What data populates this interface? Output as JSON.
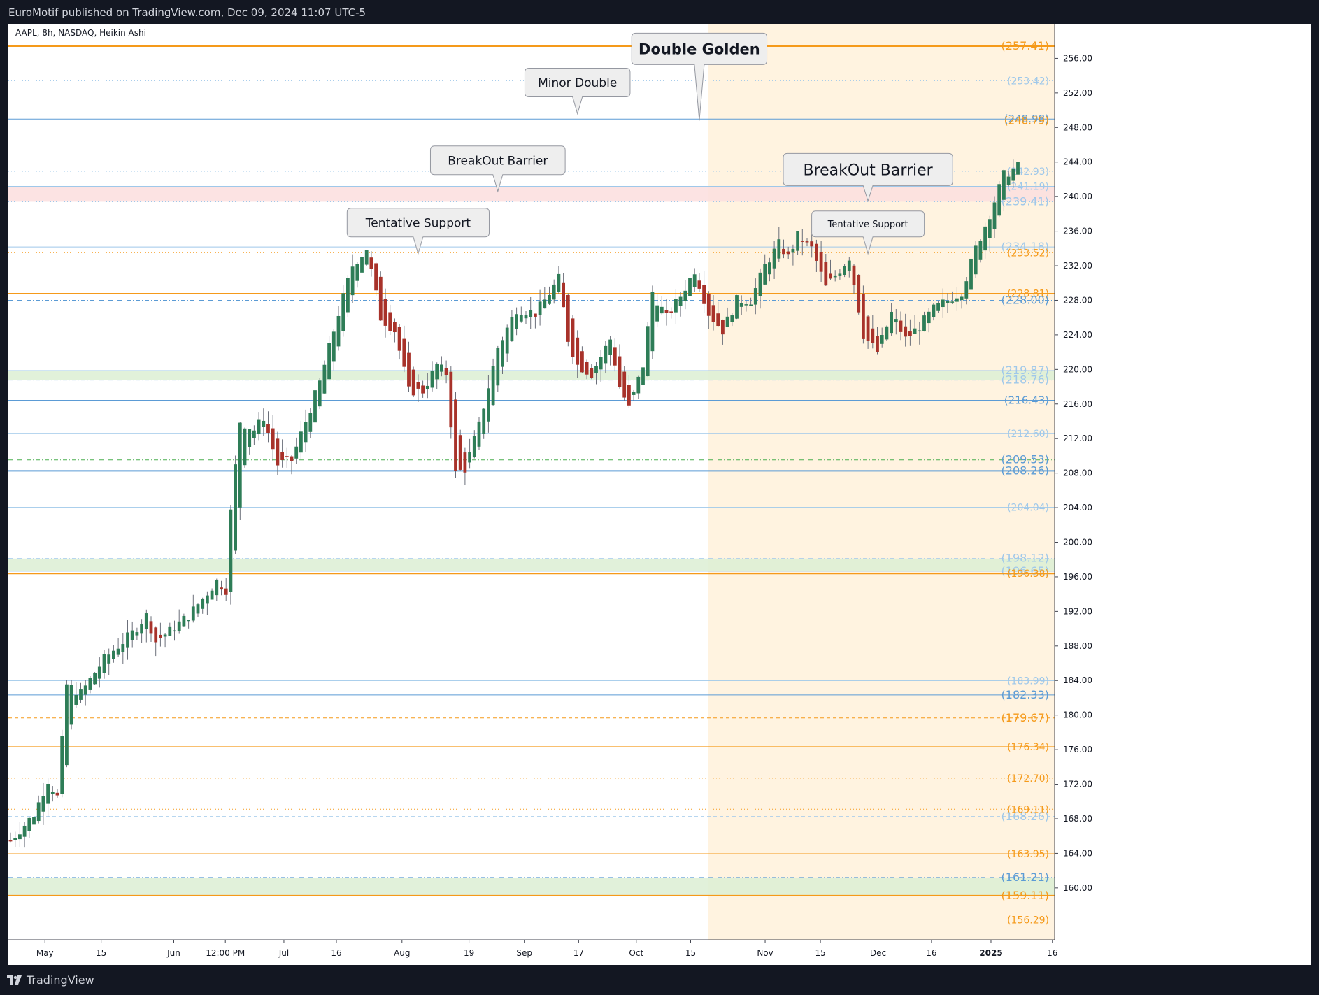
{
  "header": {
    "published": "EuroMotif published on TradingView.com, Dec 09, 2024 11:07 UTC-5",
    "symbol_legend": "AAPL, 8h, NASDAQ, Heikin Ashi"
  },
  "footer": {
    "brand": "TradingView",
    "logo_icon": "tradingview-logo-icon"
  },
  "colors": {
    "up": "#2e7d57",
    "down": "#a8322a",
    "orange": "#f59a1a",
    "blue": "#5b9bd5",
    "light_blue": "#9fc8ea",
    "green_zone": "#dcefd3",
    "red_zone": "#fbdede",
    "highlight": "#fff3e0"
  },
  "chart_data": {
    "type": "candlestick",
    "style": "Heikin Ashi",
    "ylim": [
      154,
      260
    ],
    "y_ticks": [
      "160.00",
      "164.00",
      "168.00",
      "172.00",
      "176.00",
      "180.00",
      "184.00",
      "188.00",
      "192.00",
      "196.00",
      "200.00",
      "204.00",
      "208.00",
      "212.00",
      "216.00",
      "220.00",
      "224.00",
      "228.00",
      "232.00",
      "236.00",
      "240.00",
      "244.00",
      "248.00",
      "252.00",
      "256.00"
    ],
    "x_ticks": [
      "May",
      "15",
      "Jun",
      "12:00 PM",
      "Jul",
      "16",
      "Aug",
      "19",
      "Sep",
      "17",
      "Oct",
      "15",
      "Nov",
      "15",
      "Dec",
      "16",
      "2025",
      "16"
    ],
    "grid": false,
    "highlight_period": {
      "from": "Oct 21",
      "to": "end"
    },
    "anchors": [
      {
        "t": 0,
        "p": 165.5
      },
      {
        "t": 5,
        "p": 168.5
      },
      {
        "t": 8,
        "p": 172.5
      },
      {
        "t": 10,
        "p": 170.5
      },
      {
        "t": 12,
        "p": 183.5
      },
      {
        "t": 15,
        "p": 182.5
      },
      {
        "t": 20,
        "p": 186.5
      },
      {
        "t": 26,
        "p": 189.5
      },
      {
        "t": 29,
        "p": 191.5
      },
      {
        "t": 31,
        "p": 188.5
      },
      {
        "t": 38,
        "p": 191.5
      },
      {
        "t": 44,
        "p": 195.5
      },
      {
        "t": 46,
        "p": 194.5
      },
      {
        "t": 47,
        "p": 203.5
      },
      {
        "t": 49,
        "p": 214.0
      },
      {
        "t": 52,
        "p": 213.0
      },
      {
        "t": 54,
        "p": 214.5
      },
      {
        "t": 57,
        "p": 209.0
      },
      {
        "t": 60,
        "p": 209.5
      },
      {
        "t": 62,
        "p": 212.5
      },
      {
        "t": 66,
        "p": 218.5
      },
      {
        "t": 70,
        "p": 226.5
      },
      {
        "t": 73,
        "p": 232.0
      },
      {
        "t": 76,
        "p": 234.0
      },
      {
        "t": 79,
        "p": 226.0
      },
      {
        "t": 82,
        "p": 224.5
      },
      {
        "t": 85,
        "p": 217.5
      },
      {
        "t": 88,
        "p": 217.5
      },
      {
        "t": 91,
        "p": 220.5
      },
      {
        "t": 93,
        "p": 219.5
      },
      {
        "t": 95,
        "p": 208.0
      },
      {
        "t": 97,
        "p": 208.5
      },
      {
        "t": 100,
        "p": 213.5
      },
      {
        "t": 104,
        "p": 222.5
      },
      {
        "t": 108,
        "p": 227.0
      },
      {
        "t": 112,
        "p": 226.5
      },
      {
        "t": 114,
        "p": 228.0
      },
      {
        "t": 117,
        "p": 230.5
      },
      {
        "t": 119,
        "p": 223.5
      },
      {
        "t": 121,
        "p": 220.5
      },
      {
        "t": 124,
        "p": 219.5
      },
      {
        "t": 128,
        "p": 223.5
      },
      {
        "t": 130,
        "p": 218.0
      },
      {
        "t": 132,
        "p": 215.5
      },
      {
        "t": 135,
        "p": 220.5
      },
      {
        "t": 137,
        "p": 229.0
      },
      {
        "t": 140,
        "p": 226.0
      },
      {
        "t": 143,
        "p": 228.5
      },
      {
        "t": 146,
        "p": 231.5
      },
      {
        "t": 149,
        "p": 226.5
      },
      {
        "t": 152,
        "p": 224.5
      },
      {
        "t": 155,
        "p": 228.0
      },
      {
        "t": 158,
        "p": 228.0
      },
      {
        "t": 161,
        "p": 232.0
      },
      {
        "t": 164,
        "p": 234.5
      },
      {
        "t": 166,
        "p": 233.0
      },
      {
        "t": 168,
        "p": 235.5
      },
      {
        "t": 171,
        "p": 234.0
      },
      {
        "t": 174,
        "p": 229.5
      },
      {
        "t": 177,
        "p": 231.5
      },
      {
        "t": 179,
        "p": 233.0
      },
      {
        "t": 182,
        "p": 224.0
      },
      {
        "t": 185,
        "p": 222.0
      },
      {
        "t": 188,
        "p": 226.5
      },
      {
        "t": 191,
        "p": 223.5
      },
      {
        "t": 194,
        "p": 225.0
      },
      {
        "t": 197,
        "p": 227.0
      },
      {
        "t": 200,
        "p": 228.0
      },
      {
        "t": 203,
        "p": 229.0
      },
      {
        "t": 206,
        "p": 234.0
      },
      {
        "t": 209,
        "p": 238.0
      },
      {
        "t": 212,
        "p": 242.5
      },
      {
        "t": 215,
        "p": 243.5
      }
    ],
    "price_labels": [
      {
        "value": "(257.41)",
        "color": "#f59a1a",
        "size": 16,
        "style": "solid",
        "weight": 2
      },
      {
        "value": "(253.42)",
        "color": "#9fc8ea",
        "size": 14,
        "style": "dotted",
        "weight": 1
      },
      {
        "value": "(248.98)",
        "color": "#5b9bd5",
        "size": 15,
        "style": "solid",
        "weight": 1
      },
      {
        "value": "(248.79)",
        "color": "#f59a1a",
        "size": 15,
        "style": "none",
        "weight": 1
      },
      {
        "value": "(242.93)",
        "color": "#9fc8ea",
        "size": 14,
        "style": "dotted",
        "weight": 1
      },
      {
        "value": "(241.19)",
        "color": "#9fc8ea",
        "size": 14,
        "style": "solid",
        "weight": 1
      },
      {
        "value": "(239.41)",
        "color": "#9fc8ea",
        "size": 16,
        "style": "dotted",
        "weight": 1
      },
      {
        "value": "(234.18)",
        "color": "#9fc8ea",
        "size": 16,
        "style": "solid",
        "weight": 1
      },
      {
        "value": "(233.52)",
        "color": "#f59a1a",
        "size": 14,
        "style": "dotted",
        "weight": 1
      },
      {
        "value": "(228.81)",
        "color": "#f59a1a",
        "size": 14,
        "style": "solid",
        "weight": 1
      },
      {
        "value": "(228.00)",
        "color": "#5b9bd5",
        "size": 16,
        "style": "dashdot",
        "weight": 1
      },
      {
        "value": "(219.87)",
        "color": "#9fc8ea",
        "size": 16,
        "style": "solid",
        "weight": 1
      },
      {
        "value": "(218.76)",
        "color": "#9fc8ea",
        "size": 16,
        "style": "dashdot",
        "weight": 1
      },
      {
        "value": "(216.43)",
        "color": "#5b9bd5",
        "size": 15,
        "style": "solid",
        "weight": 1
      },
      {
        "value": "(212.60)",
        "color": "#9fc8ea",
        "size": 14,
        "style": "solid",
        "weight": 1
      },
      {
        "value": "(209.53)",
        "color": "#5b9bd5",
        "size": 16,
        "style": "dashdot-green",
        "weight": 1
      },
      {
        "value": "(208.26)",
        "color": "#5b9bd5",
        "size": 16,
        "style": "solid",
        "weight": 2
      },
      {
        "value": "(204.04)",
        "color": "#9fc8ea",
        "size": 14,
        "style": "solid",
        "weight": 1
      },
      {
        "value": "(198.12)",
        "color": "#9fc8ea",
        "size": 16,
        "style": "dashdot",
        "weight": 1
      },
      {
        "value": "(196.65)",
        "color": "#9fc8ea",
        "size": 16,
        "style": "solid",
        "weight": 1
      },
      {
        "value": "(196.38)",
        "color": "#f59a1a",
        "size": 14,
        "style": "solid",
        "weight": 2
      },
      {
        "value": "(183.99)",
        "color": "#9fc8ea",
        "size": 14,
        "style": "solid",
        "weight": 1
      },
      {
        "value": "(182.33)",
        "color": "#5b9bd5",
        "size": 16,
        "style": "solid",
        "weight": 1
      },
      {
        "value": "(179.67)",
        "color": "#f59a1a",
        "size": 16,
        "style": "dashed",
        "weight": 1
      },
      {
        "value": "(176.34)",
        "color": "#f59a1a",
        "size": 14,
        "style": "solid",
        "weight": 1
      },
      {
        "value": "(172.70)",
        "color": "#f59a1a",
        "size": 14,
        "style": "dotted",
        "weight": 1
      },
      {
        "value": "(169.11)",
        "color": "#f59a1a",
        "size": 14,
        "style": "dotted",
        "weight": 1
      },
      {
        "value": "(168.26)",
        "color": "#9fc8ea",
        "size": 16,
        "style": "dashed",
        "weight": 1
      },
      {
        "value": "(163.95)",
        "color": "#f59a1a",
        "size": 14,
        "style": "solid",
        "weight": 1
      },
      {
        "value": "(161.21)",
        "color": "#5b9bd5",
        "size": 16,
        "style": "dashdot",
        "weight": 1
      },
      {
        "value": "(159.11)",
        "color": "#f59a1a",
        "size": 16,
        "style": "solid",
        "weight": 2
      },
      {
        "value": "(156.29)",
        "color": "#f59a1a",
        "size": 14,
        "style": "none",
        "weight": 1
      }
    ],
    "zones": [
      {
        "name": "red-zone",
        "from": 239.41,
        "to": 241.19,
        "color": "#fbdede"
      },
      {
        "name": "green-zone-upper",
        "from": 218.76,
        "to": 219.87,
        "color": "#dcefd3"
      },
      {
        "name": "green-zone-mid",
        "from": 196.65,
        "to": 198.12,
        "color": "#dcefd3"
      },
      {
        "name": "green-zone-lower",
        "from": 159.11,
        "to": 161.21,
        "color": "#dcefd3"
      }
    ],
    "annotations": [
      {
        "text": "Minor Double",
        "size": 17,
        "weight": "normal",
        "price": 249.6,
        "tip_t": 121
      },
      {
        "text": "Double Golden",
        "size": 21,
        "weight": "bold",
        "price": 248.8,
        "tip_t": 147
      },
      {
        "text": "BreakOut Barrier",
        "size": 17,
        "weight": "normal",
        "price": 240.6,
        "tip_t": 104
      },
      {
        "text": "BreakOut Barrier",
        "size": 22,
        "weight": "normal",
        "price": 239.5,
        "tip_t": 183
      },
      {
        "text": "Tentative Support",
        "size": 17,
        "weight": "normal",
        "price": 233.4,
        "tip_t": 87
      },
      {
        "text": "Tentative Support",
        "size": 13,
        "weight": "normal",
        "price": 233.4,
        "tip_t": 183
      }
    ]
  }
}
